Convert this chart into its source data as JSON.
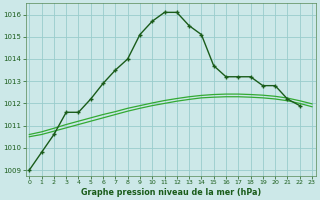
{
  "title": "Graphe pression niveau de la mer (hPa)",
  "x": [
    0,
    1,
    2,
    3,
    4,
    5,
    6,
    7,
    8,
    9,
    10,
    11,
    12,
    13,
    14,
    15,
    16,
    17,
    18,
    19,
    20,
    21,
    22,
    23
  ],
  "y_main": [
    1009.0,
    1009.8,
    1010.6,
    1011.6,
    1011.6,
    1012.2,
    1012.9,
    1013.5,
    1014.0,
    1015.1,
    1015.7,
    1016.1,
    1016.1,
    1015.5,
    1015.1,
    1013.7,
    1013.2,
    1013.2,
    1013.2,
    1012.8,
    1012.8,
    1012.2,
    1011.9,
    null
  ],
  "y_smooth1": [
    1010.5,
    1010.6,
    1010.75,
    1010.9,
    1011.05,
    1011.2,
    1011.35,
    1011.5,
    1011.65,
    1011.78,
    1011.9,
    1012.0,
    1012.1,
    1012.18,
    1012.25,
    1012.28,
    1012.3,
    1012.3,
    1012.28,
    1012.25,
    1012.2,
    1012.12,
    1012.0,
    1011.85
  ],
  "y_smooth2": [
    1010.6,
    1010.72,
    1010.88,
    1011.05,
    1011.2,
    1011.35,
    1011.5,
    1011.63,
    1011.78,
    1011.9,
    1012.02,
    1012.13,
    1012.22,
    1012.3,
    1012.36,
    1012.4,
    1012.42,
    1012.42,
    1012.4,
    1012.37,
    1012.32,
    1012.24,
    1012.12,
    1011.98
  ],
  "bg_color": "#cce8e8",
  "grid_color": "#99cccc",
  "line_color_main": "#1a5c1a",
  "line_color_smooth": "#33aa33",
  "ylim": [
    1008.75,
    1016.5
  ],
  "xlim": [
    -0.3,
    23.3
  ],
  "yticks": [
    1009,
    1010,
    1011,
    1012,
    1013,
    1014,
    1015,
    1016
  ],
  "xticks": [
    0,
    1,
    2,
    3,
    4,
    5,
    6,
    7,
    8,
    9,
    10,
    11,
    12,
    13,
    14,
    15,
    16,
    17,
    18,
    19,
    20,
    21,
    22,
    23
  ]
}
